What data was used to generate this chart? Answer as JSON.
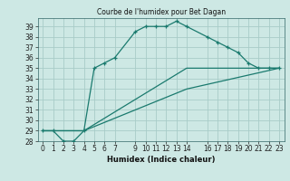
{
  "title": "Courbe de l'humidex pour Bet Dagan",
  "xlabel": "Humidex (Indice chaleur)",
  "bg_color": "#cde8e4",
  "grid_color": "#a8ccc8",
  "line_color": "#1a7a6e",
  "xlim": [
    -0.5,
    23.5
  ],
  "ylim": [
    28,
    39.8
  ],
  "xticks": [
    0,
    1,
    2,
    3,
    4,
    5,
    6,
    7,
    9,
    10,
    11,
    12,
    13,
    14,
    16,
    17,
    18,
    19,
    20,
    21,
    22,
    23
  ],
  "yticks": [
    28,
    29,
    30,
    31,
    32,
    33,
    34,
    35,
    36,
    37,
    38,
    39
  ],
  "line1_x": [
    0,
    1,
    2,
    3,
    4,
    5,
    6,
    7,
    9,
    10,
    11,
    12,
    13,
    14,
    16,
    17,
    18,
    19,
    20,
    21,
    22,
    23
  ],
  "line1_y": [
    29,
    29,
    28,
    28,
    29,
    35,
    35.5,
    36,
    38.5,
    39,
    39,
    39,
    39.5,
    39,
    38,
    37.5,
    37,
    36.5,
    35.5,
    35,
    35,
    35
  ],
  "line2_x": [
    0,
    4,
    14,
    23
  ],
  "line2_y": [
    29,
    29,
    35,
    35
  ],
  "line3_x": [
    0,
    4,
    14,
    23
  ],
  "line3_y": [
    29,
    29,
    33,
    35
  ],
  "marker": "+"
}
